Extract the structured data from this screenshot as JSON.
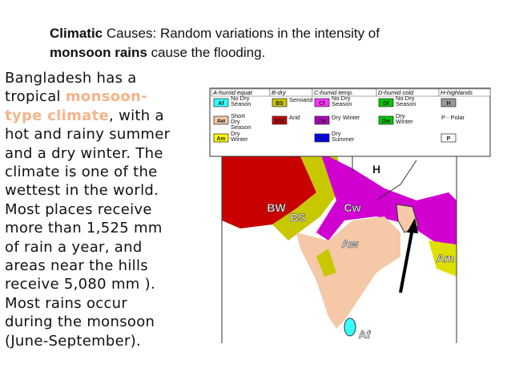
{
  "header": {
    "line1": [
      "Climatic",
      " Causes: Random variations in the intensity of"
    ],
    "line2": [
      "monsoon rains",
      " cause the flooding."
    ]
  },
  "body": {
    "lines": [
      [
        "Bangladesh has a"
      ],
      [
        "tropical ",
        "monsoon-"
      ],
      [
        "type climate",
        ", with a"
      ],
      [
        "hot and rainy summer"
      ],
      [
        "and a dry winter. The"
      ],
      [
        "climate is one of the"
      ],
      [
        "wettest in the world."
      ],
      [
        "Most places receive"
      ],
      [
        "more than 1,525 mm"
      ],
      [
        "of rain a year, and"
      ],
      [
        "areas near the hills"
      ],
      [
        "receive 5,080 mm )."
      ],
      [
        "Most rains occur"
      ],
      [
        "during the monsoon"
      ],
      [
        "(June-September)."
      ]
    ]
  },
  "legend": {
    "columns": [
      {
        "title": "A-humid equat",
        "items": [
          {
            "code": "Af",
            "label": [
              "No Dry",
              "Season"
            ]
          },
          {
            "code": "Aw",
            "label": [
              "Short",
              "Dry",
              "Season"
            ]
          },
          {
            "code": "Am",
            "label": [
              "Dry",
              "Winter"
            ]
          }
        ]
      },
      {
        "title": "B-dry",
        "items": [
          {
            "code": "BS",
            "label": [
              "Semiarid"
            ]
          },
          {
            "code": "BW",
            "label": [
              "Arid"
            ]
          }
        ]
      },
      {
        "title": "C-humid temp.",
        "items": [
          {
            "code": "Cf",
            "label": [
              "No Dry",
              "Season"
            ]
          },
          {
            "code": "Cw",
            "label": [
              "Dry Winter"
            ]
          },
          {
            "code": "Cs",
            "label": [
              "Dry",
              "Summer"
            ]
          }
        ]
      },
      {
        "title": "D-humid cold",
        "items": [
          {
            "code": "Df",
            "label": [
              "No Dry",
              "Season"
            ]
          },
          {
            "code": "Dw",
            "label": [
              "Dry",
              "Winter"
            ]
          }
        ]
      },
      {
        "title": "H-highlands",
        "items": [
          {
            "code": "H"
          },
          {
            "label": [
              "P - Polar"
            ]
          },
          {
            "code": "P"
          }
        ]
      }
    ]
  },
  "map": {
    "labels": [
      "H",
      "BW",
      "BS",
      "Cw",
      "Aw",
      "Am",
      "Af"
    ]
  }
}
